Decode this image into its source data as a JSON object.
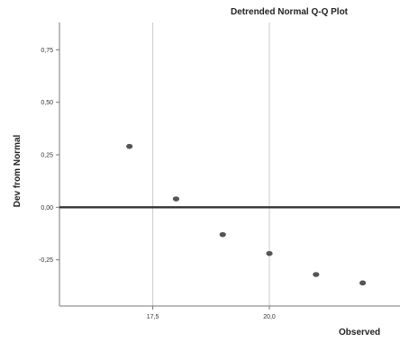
{
  "chart_data": {
    "type": "scatter",
    "title": "Detrended Normal Q-Q Plot",
    "xlabel": "Observed",
    "ylabel": "Dev from Normal",
    "xlim": [
      15.5,
      22.8
    ],
    "ylim": [
      -0.47,
      0.88
    ],
    "x_ticks": [
      17.5,
      20.0
    ],
    "x_tick_labels": [
      "17,5",
      "20,0"
    ],
    "y_ticks": [
      -0.25,
      0.0,
      0.25,
      0.5,
      0.75
    ],
    "y_tick_labels": [
      "-0,25",
      "0,00",
      "0,25",
      "0,50",
      "0,75"
    ],
    "grid": "vertical",
    "reference_line": 0.0,
    "points": [
      {
        "x": 17.0,
        "y": 0.29
      },
      {
        "x": 18.0,
        "y": 0.04
      },
      {
        "x": 19.0,
        "y": -0.13
      },
      {
        "x": 20.0,
        "y": -0.22
      },
      {
        "x": 21.0,
        "y": -0.32
      },
      {
        "x": 22.0,
        "y": -0.36
      }
    ],
    "colors": {
      "marker": "#555555",
      "reference": "#333333",
      "grid": "#cccccc",
      "frame": "#777777"
    }
  }
}
